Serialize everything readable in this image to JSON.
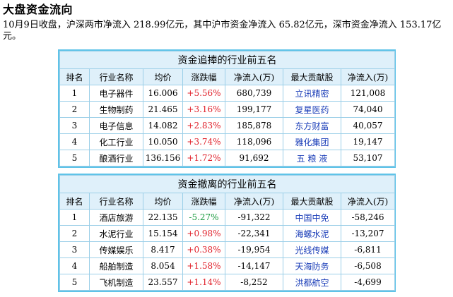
{
  "heading": "大盘资金流向",
  "summary": "10月9日收盘，沪深两市净流入 218.99亿元，其中沪市资金净流入 65.82亿元，深市资金净流入 153.17亿元。",
  "colors": {
    "border": "#5fc3e8",
    "header_bg": "#dff0fa",
    "up": "#e0202a",
    "down": "#1a9a3e",
    "link": "#1a3db8"
  },
  "inflow_table": {
    "title": "资金追捧的行业前五名",
    "columns": [
      "排名",
      "行业名称",
      "均价",
      "涨跌幅",
      "净流入(万)",
      "最大贡献股",
      "净流入(万)"
    ],
    "rows": [
      {
        "rank": "1",
        "industry": "电子器件",
        "price": "16.006",
        "change": "+5.56%",
        "dir": "pos",
        "net": "680,739",
        "stock": "立讯精密",
        "stock_net": "121,008"
      },
      {
        "rank": "2",
        "industry": "生物制药",
        "price": "21.465",
        "change": "+3.16%",
        "dir": "pos",
        "net": "199,177",
        "stock": "复星医药",
        "stock_net": "74,040"
      },
      {
        "rank": "3",
        "industry": "电子信息",
        "price": "14.082",
        "change": "+2.83%",
        "dir": "pos",
        "net": "185,878",
        "stock": "东方财富",
        "stock_net": "40,057"
      },
      {
        "rank": "4",
        "industry": "化工行业",
        "price": "10.050",
        "change": "+3.74%",
        "dir": "pos",
        "net": "118,096",
        "stock": "雅化集团",
        "stock_net": "19,147"
      },
      {
        "rank": "5",
        "industry": "酿酒行业",
        "price": "136.156",
        "change": "+1.72%",
        "dir": "pos",
        "net": "91,692",
        "stock": "五 粮 液",
        "stock_net": "53,107"
      }
    ]
  },
  "outflow_table": {
    "title": "资金撤离的行业前五名",
    "columns": [
      "排名",
      "行业名称",
      "均价",
      "涨跌幅",
      "净流入(万)",
      "最大贡献股",
      "净流入(万)"
    ],
    "rows": [
      {
        "rank": "1",
        "industry": "酒店旅游",
        "price": "22.135",
        "change": "-5.27%",
        "dir": "neg",
        "net": "-91,322",
        "stock": "中国中免",
        "stock_net": "-58,246"
      },
      {
        "rank": "2",
        "industry": "水泥行业",
        "price": "15.154",
        "change": "+0.98%",
        "dir": "pos",
        "net": "-22,341",
        "stock": "海螺水泥",
        "stock_net": "-13,207"
      },
      {
        "rank": "3",
        "industry": "传媒娱乐",
        "price": "8.417",
        "change": "+0.38%",
        "dir": "pos",
        "net": "-19,954",
        "stock": "光线传媒",
        "stock_net": "-6,811"
      },
      {
        "rank": "4",
        "industry": "船舶制造",
        "price": "8.054",
        "change": "+1.58%",
        "dir": "pos",
        "net": "-14,147",
        "stock": "天海防务",
        "stock_net": "-6,508"
      },
      {
        "rank": "5",
        "industry": "飞机制造",
        "price": "23.557",
        "change": "+1.14%",
        "dir": "pos",
        "net": "-8,252",
        "stock": "洪都航空",
        "stock_net": "-4,699"
      }
    ]
  }
}
